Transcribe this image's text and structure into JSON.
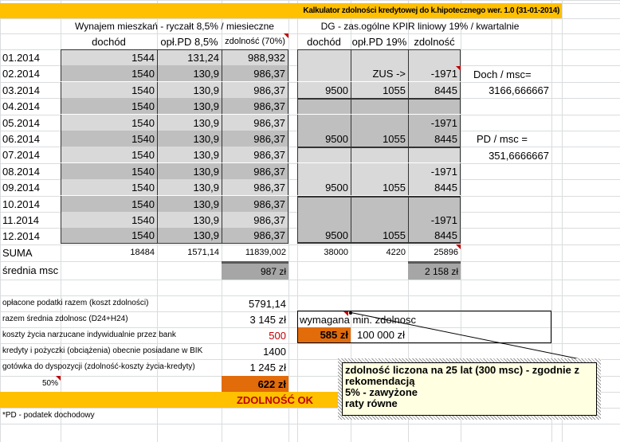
{
  "title": "Kalkulator zdolności kredytowej do k.hipotecznego wer. 1.0 (31-01-2014)",
  "left_section": {
    "title": "Wynajem mieszkań - ryczałt 8,5% / miesieczne",
    "headers": [
      "dochód",
      "opł.PD 8,5%",
      "zdolność (70%)"
    ]
  },
  "right_section": {
    "title": "DG - zas.ogólne KPIR liniowy 19% / kwartalnie",
    "headers": [
      "dochód",
      "opł.PD 19%",
      "zdolność"
    ]
  },
  "rows": [
    {
      "month": "01.2014",
      "l": [
        "1544",
        "131,24",
        "988,932"
      ],
      "r": [
        "",
        "",
        ""
      ]
    },
    {
      "month": "02.2014",
      "l": [
        "1540",
        "130,9",
        "986,37"
      ],
      "r": [
        "",
        "ZUS ->",
        "-1971"
      ]
    },
    {
      "month": "03.2014",
      "l": [
        "1540",
        "130,9",
        "986,37"
      ],
      "r": [
        "9500",
        "1055",
        "8445"
      ]
    },
    {
      "month": "04.2014",
      "l": [
        "1540",
        "130,9",
        "986,37"
      ],
      "r": [
        "",
        "",
        ""
      ]
    },
    {
      "month": "05.2014",
      "l": [
        "1540",
        "130,9",
        "986,37"
      ],
      "r": [
        "",
        "",
        "-1971"
      ]
    },
    {
      "month": "06.2014",
      "l": [
        "1540",
        "130,9",
        "986,37"
      ],
      "r": [
        "9500",
        "1055",
        "8445"
      ]
    },
    {
      "month": "07.2014",
      "l": [
        "1540",
        "130,9",
        "986,37"
      ],
      "r": [
        "",
        "",
        ""
      ]
    },
    {
      "month": "08.2014",
      "l": [
        "1540",
        "130,9",
        "986,37"
      ],
      "r": [
        "",
        "",
        "-1971"
      ]
    },
    {
      "month": "09.2014",
      "l": [
        "1540",
        "130,9",
        "986,37"
      ],
      "r": [
        "9500",
        "1055",
        "8445"
      ]
    },
    {
      "month": "10.2014",
      "l": [
        "1540",
        "130,9",
        "986,37"
      ],
      "r": [
        "",
        "",
        ""
      ]
    },
    {
      "month": "11.2014",
      "l": [
        "1540",
        "130,9",
        "986,37"
      ],
      "r": [
        "",
        "",
        "-1971"
      ]
    },
    {
      "month": "12.2014",
      "l": [
        "1540",
        "130,9",
        "986,37"
      ],
      "r": [
        "9500",
        "1055",
        "8445"
      ]
    }
  ],
  "side": {
    "doch_label": "Doch / msc=",
    "doch_value": "3166,666667",
    "pd_label": "PD / msc =",
    "pd_value": "351,6666667"
  },
  "suma": {
    "label": "SUMA",
    "l": [
      "18484",
      "1571,14",
      "11839,002"
    ],
    "r": [
      "38000",
      "4220",
      "25896"
    ]
  },
  "srednia": {
    "label": "średnia msc",
    "left": "987 zł",
    "right": "2 158 zł"
  },
  "summary": [
    {
      "label": "opłacone podatki razem (koszt zdolności)",
      "value": "5791,14"
    },
    {
      "label": "razem średnia zdolnosc (D24+H24)",
      "value": "3 145 zł"
    },
    {
      "label": "koszty życia narzucane indywidualnie przez bank",
      "value": "500"
    },
    {
      "label": "kredyty i pożyczki (obciążenia) obecnie posiadane w BIK",
      "value": "1400"
    },
    {
      "label": "gotówka do dyspozycji (zdolność-koszty życia-kredyty)",
      "value": "1 245 zł"
    }
  ],
  "percent": "50%",
  "result_value": "622 zł",
  "required": {
    "label": "wymagana min. zdolnosc",
    "value": "585 zł",
    "amount": "100 000 zł"
  },
  "status": "ZDOLNOŚĆ OK",
  "footnote": "*PD - podatek dochodowy",
  "comment": {
    "lines": [
      "zdolność liczona na 25 lat (300 msc) - zgodnie z rekomendacją",
      "5% - zawyżone",
      "raty równe"
    ]
  },
  "colors": {
    "banner": "#ffc000",
    "orange": "#e26b0a",
    "status_text": "#c00000",
    "comment_bg": "#ffffe1"
  }
}
